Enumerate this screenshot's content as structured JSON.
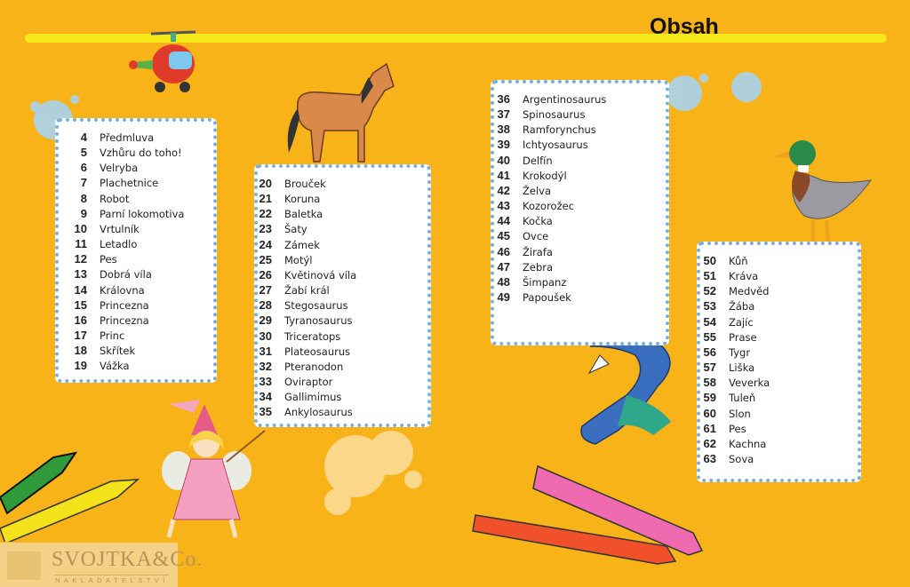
{
  "title": "Obsah",
  "columns": [
    {
      "entries": [
        {
          "page": "4",
          "title": "Předmluva"
        },
        {
          "page": "5",
          "title": "Vzhůru do toho!"
        },
        {
          "page": "6",
          "title": "Velryba"
        },
        {
          "page": "7",
          "title": "Plachetnice"
        },
        {
          "page": "8",
          "title": "Robot"
        },
        {
          "page": "9",
          "title": "Parní lokomotiva"
        },
        {
          "page": "10",
          "title": "Vrtulník"
        },
        {
          "page": "11",
          "title": "Letadlo"
        },
        {
          "page": "12",
          "title": "Pes"
        },
        {
          "page": "13",
          "title": "Dobrá víla"
        },
        {
          "page": "14",
          "title": "Královna"
        },
        {
          "page": "15",
          "title": "Princezna"
        },
        {
          "page": "16",
          "title": "Princezna"
        },
        {
          "page": "17",
          "title": "Princ"
        },
        {
          "page": "18",
          "title": "Skřítek"
        },
        {
          "page": "19",
          "title": "Vážka"
        }
      ]
    },
    {
      "entries": [
        {
          "page": "20",
          "title": "Brouček"
        },
        {
          "page": "21",
          "title": "Koruna"
        },
        {
          "page": "22",
          "title": "Baletka"
        },
        {
          "page": "23",
          "title": "Šaty"
        },
        {
          "page": "24",
          "title": "Zámek"
        },
        {
          "page": "25",
          "title": "Motýl"
        },
        {
          "page": "26",
          "title": "Květinová víla"
        },
        {
          "page": "27",
          "title": "Žabí král"
        },
        {
          "page": "28",
          "title": "Stegosaurus"
        },
        {
          "page": "29",
          "title": "Tyranosaurus"
        },
        {
          "page": "30",
          "title": "Triceratops"
        },
        {
          "page": "31",
          "title": "Plateosaurus"
        },
        {
          "page": "32",
          "title": "Pteranodon"
        },
        {
          "page": "33",
          "title": "Oviraptor"
        },
        {
          "page": "34",
          "title": "Gallimimus"
        },
        {
          "page": "35",
          "title": "Ankylosaurus"
        }
      ]
    },
    {
      "entries": [
        {
          "page": "36",
          "title": "Argentinosaurus"
        },
        {
          "page": "37",
          "title": "Spinosaurus"
        },
        {
          "page": "38",
          "title": "Ramforynchus"
        },
        {
          "page": "39",
          "title": "Ichtyosaurus"
        },
        {
          "page": "40",
          "title": "Delfín"
        },
        {
          "page": "41",
          "title": "Krokodýl"
        },
        {
          "page": "42",
          "title": "Želva"
        },
        {
          "page": "43",
          "title": "Kozorožec"
        },
        {
          "page": "44",
          "title": "Kočka"
        },
        {
          "page": "45",
          "title": "Ovce"
        },
        {
          "page": "46",
          "title": "Žirafa"
        },
        {
          "page": "47",
          "title": "Zebra"
        },
        {
          "page": "48",
          "title": "Šimpanz"
        },
        {
          "page": "49",
          "title": "Papoušek"
        }
      ]
    },
    {
      "entries": [
        {
          "page": "50",
          "title": "Kůň"
        },
        {
          "page": "51",
          "title": "Kráva"
        },
        {
          "page": "52",
          "title": "Medvěd"
        },
        {
          "page": "53",
          "title": "Žába"
        },
        {
          "page": "54",
          "title": "Zajíc"
        },
        {
          "page": "55",
          "title": "Prase"
        },
        {
          "page": "56",
          "title": "Tygr"
        },
        {
          "page": "57",
          "title": "Liška"
        },
        {
          "page": "58",
          "title": "Veverka"
        },
        {
          "page": "59",
          "title": "Tuleň"
        },
        {
          "page": "60",
          "title": "Slon"
        },
        {
          "page": "61",
          "title": "Pes"
        },
        {
          "page": "62",
          "title": "Kachna"
        },
        {
          "page": "63",
          "title": "Sova"
        }
      ]
    }
  ],
  "publisher": {
    "name": "SVOJTKA&Co.",
    "subtitle": "NAKLADATELSTVÍ"
  },
  "colors": {
    "background": "#f7b318",
    "stripe": "#f4ea1a",
    "box_border": "#7aaee0"
  }
}
